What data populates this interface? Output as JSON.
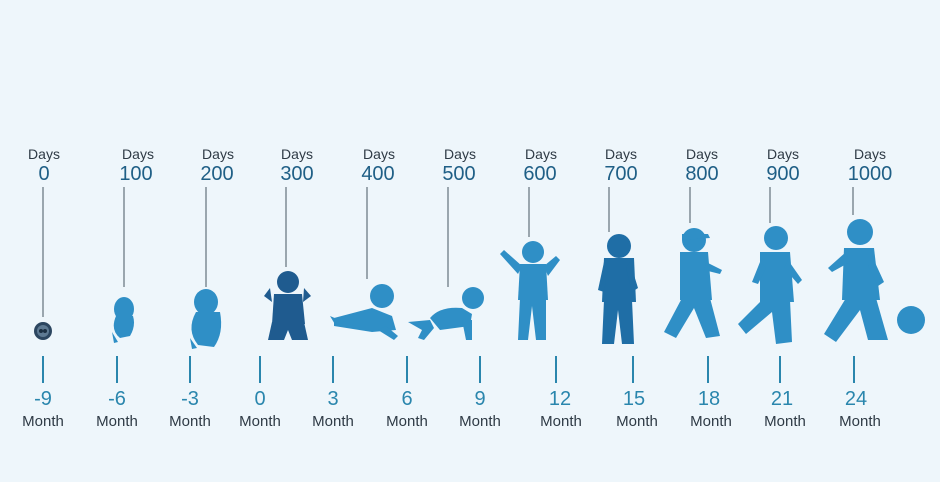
{
  "days_unit": "Days",
  "month_unit": "Month",
  "colors": {
    "background": "#eef6fb",
    "days_value": "#1f5f86",
    "month_value": "#2a86ad",
    "figure_light": "#2f8fc6",
    "figure_dark": "#1f5b8f",
    "connector": "#9aa6ae"
  },
  "days_markers": [
    {
      "value": "0",
      "figure": "embryo-icon"
    },
    {
      "value": "100",
      "figure": "fetus-small-icon"
    },
    {
      "value": "200",
      "figure": "fetus-large-icon"
    },
    {
      "value": "300",
      "figure": "sitting-baby-icon"
    },
    {
      "value": "400",
      "figure": "lying-baby-icon"
    },
    {
      "value": "500",
      "figure": "crawling-baby-icon"
    },
    {
      "value": "600",
      "figure": "standing-toddler-icon"
    },
    {
      "value": "700",
      "figure": "standing-toddler-icon"
    },
    {
      "value": "800",
      "figure": "walking-toddler-icon"
    },
    {
      "value": "900",
      "figure": "walking-toddler-icon"
    },
    {
      "value": "1000",
      "figure": "walking-toddler-icon"
    }
  ],
  "month_markers": [
    "-9",
    "-6",
    "-3",
    "0",
    "3",
    "6",
    "9",
    "12",
    "15",
    "18",
    "21",
    "24"
  ],
  "ball_icon": "ball-icon"
}
